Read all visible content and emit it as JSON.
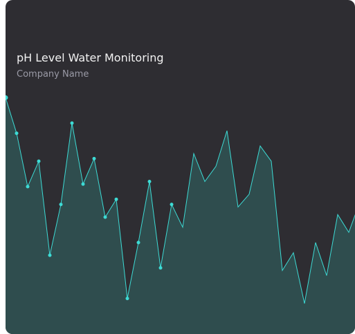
{
  "card": {
    "title": "pH Level Water Monitoring",
    "subtitle": "Company Name"
  },
  "colors": {
    "background": "#2e2d32",
    "line": "#3ddbd5",
    "area": "#2f4d4e",
    "title": "#f2f2f2",
    "subtitle": "#9a9aa6"
  },
  "chart_data": {
    "type": "area",
    "title": "pH Level Water Monitoring",
    "subtitle": "Company Name",
    "xlabel": "",
    "ylabel": "",
    "grid": false,
    "legend": "none",
    "x": [
      1,
      2,
      3,
      4,
      5,
      6,
      7,
      8,
      9,
      10,
      11,
      12,
      13,
      14,
      15,
      16,
      17,
      18,
      19,
      20,
      21,
      22,
      23,
      24,
      25,
      26,
      27,
      28,
      29,
      30,
      31,
      32,
      33
    ],
    "values": [
      9.3,
      7.9,
      5.8,
      6.8,
      3.1,
      5.1,
      8.3,
      5.9,
      6.9,
      4.6,
      5.3,
      1.4,
      3.6,
      6.0,
      2.6,
      5.1,
      4.2,
      7.1,
      6.0,
      6.6,
      8.0,
      5.0,
      5.5,
      7.4,
      6.8,
      2.5,
      3.2,
      1.2,
      3.6,
      2.3,
      4.7,
      4.0,
      5.2
    ],
    "markers": [
      true,
      true,
      true,
      true,
      true,
      true,
      true,
      true,
      true,
      true,
      true,
      true,
      true,
      true,
      true,
      true,
      false,
      false,
      false,
      false,
      false,
      false,
      false,
      false,
      false,
      false,
      false,
      false,
      false,
      false,
      false,
      false,
      false
    ],
    "ylim": [
      0,
      12
    ]
  }
}
